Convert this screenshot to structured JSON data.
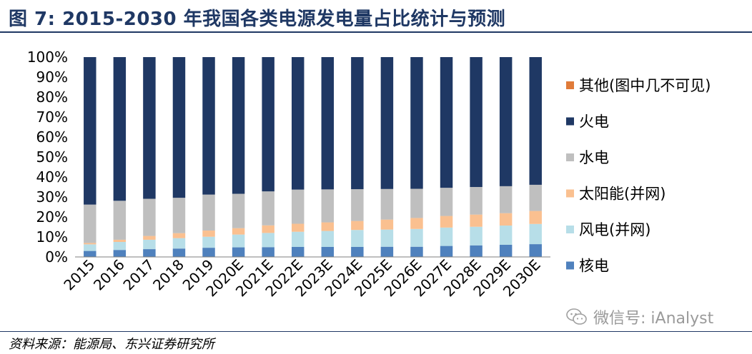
{
  "header": {
    "title": "图 7: 2015-2030 年我国各类电源发电量占比统计与预测"
  },
  "footer": {
    "source": "资料来源：能源局、东兴证券研究所"
  },
  "watermark": {
    "text": "微信号: iAnalyst",
    "icon": "wechat-icon"
  },
  "chart_data": {
    "type": "bar",
    "stacked": true,
    "categories": [
      "2015",
      "2016",
      "2017",
      "2018",
      "2019",
      "2020E",
      "2021E",
      "2022E",
      "2023E",
      "2024E",
      "2025E",
      "2026E",
      "2027E",
      "2028E",
      "2029E",
      "2030E"
    ],
    "yticks": [
      "0%",
      "10%",
      "20%",
      "30%",
      "40%",
      "50%",
      "60%",
      "70%",
      "80%",
      "90%",
      "100%"
    ],
    "ylim": [
      0,
      100
    ],
    "legend_position": "right",
    "series": [
      {
        "name": "核电",
        "color": "#4f81bd",
        "values": [
          3.0,
          3.5,
          3.9,
          4.2,
          4.6,
          4.8,
          4.9,
          5.0,
          5.0,
          5.0,
          5.1,
          5.1,
          5.5,
          5.8,
          6.1,
          6.4
        ]
      },
      {
        "name": "风电(并网)",
        "color": "#b7dee8",
        "values": [
          3.3,
          4.0,
          4.7,
          5.2,
          5.5,
          6.4,
          7.1,
          7.6,
          8.0,
          8.5,
          8.6,
          8.9,
          9.2,
          9.3,
          9.6,
          10.1
        ]
      },
      {
        "name": "太阳能(并网)",
        "color": "#fac090",
        "values": [
          0.7,
          1.1,
          1.9,
          2.5,
          3.1,
          3.2,
          3.8,
          4.0,
          4.3,
          4.5,
          5.0,
          5.5,
          5.8,
          6.1,
          6.2,
          6.5
        ]
      },
      {
        "name": "水电",
        "color": "#bfbfbf",
        "values": [
          19.2,
          19.5,
          18.6,
          17.7,
          18.0,
          17.2,
          17.0,
          17.1,
          16.5,
          15.9,
          15.3,
          14.6,
          14.1,
          13.8,
          13.5,
          13.1
        ]
      },
      {
        "name": "火电",
        "color": "#1f3864",
        "values": [
          73.8,
          71.9,
          70.9,
          70.4,
          68.8,
          68.4,
          67.2,
          66.3,
          66.2,
          66.1,
          66.0,
          65.9,
          65.4,
          65.0,
          64.6,
          63.9
        ]
      },
      {
        "name": "其他(图中几不可见)",
        "color": "#e07b39",
        "values": [
          0.0,
          0.0,
          0.0,
          0.0,
          0.0,
          0.0,
          0.0,
          0.0,
          0.0,
          0.0,
          0.0,
          0.0,
          0.0,
          0.0,
          0.0,
          0.0
        ]
      }
    ],
    "legend_order": [
      "其他(图中几不可见)",
      "火电",
      "水电",
      "太阳能(并网)",
      "风电(并网)",
      "核电"
    ]
  }
}
